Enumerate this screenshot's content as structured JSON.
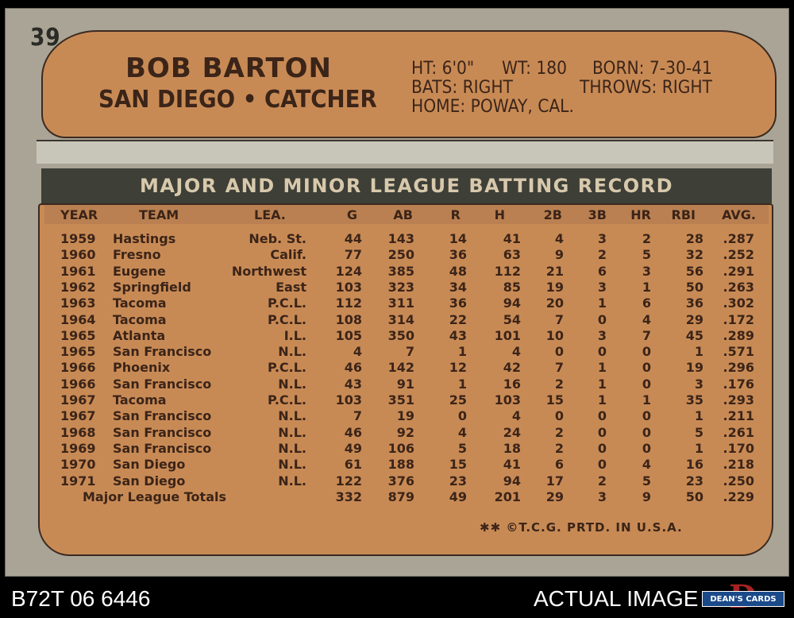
{
  "card": {
    "number": "39",
    "player_name": "BOB BARTON",
    "team": "SAN DIEGO",
    "separator": "•",
    "position": "CATCHER",
    "bio": {
      "ht": "HT: 6'0\"",
      "wt": "WT: 180",
      "born": "BORN: 7-30-41",
      "bats": "BATS: RIGHT",
      "throws": "THROWS: RIGHT",
      "home": "HOME: POWAY, CAL."
    },
    "record_title": "MAJOR AND MINOR LEAGUE BATTING RECORD",
    "columns": [
      "YEAR",
      "TEAM",
      "LEA.",
      "G",
      "AB",
      "R",
      "H",
      "2B",
      "3B",
      "HR",
      "RBI",
      "AVG."
    ],
    "rows": [
      [
        "1959",
        "Hastings",
        "Neb. St.",
        "44",
        "143",
        "14",
        "41",
        "4",
        "3",
        "2",
        "28",
        ".287"
      ],
      [
        "1960",
        "Fresno",
        "Calif.",
        "77",
        "250",
        "36",
        "63",
        "9",
        "2",
        "5",
        "32",
        ".252"
      ],
      [
        "1961",
        "Eugene",
        "Northwest",
        "124",
        "385",
        "48",
        "112",
        "21",
        "6",
        "3",
        "56",
        ".291"
      ],
      [
        "1962",
        "Springfield",
        "East",
        "103",
        "323",
        "34",
        "85",
        "19",
        "3",
        "1",
        "50",
        ".263"
      ],
      [
        "1963",
        "Tacoma",
        "P.C.L.",
        "112",
        "311",
        "36",
        "94",
        "20",
        "1",
        "6",
        "36",
        ".302"
      ],
      [
        "1964",
        "Tacoma",
        "P.C.L.",
        "108",
        "314",
        "22",
        "54",
        "7",
        "0",
        "4",
        "29",
        ".172"
      ],
      [
        "1965",
        "Atlanta",
        "I.L.",
        "105",
        "350",
        "43",
        "101",
        "10",
        "3",
        "7",
        "45",
        ".289"
      ],
      [
        "1965",
        "San Francisco",
        "N.L.",
        "4",
        "7",
        "1",
        "4",
        "0",
        "0",
        "0",
        "1",
        ".571"
      ],
      [
        "1966",
        "Phoenix",
        "P.C.L.",
        "46",
        "142",
        "12",
        "42",
        "7",
        "1",
        "0",
        "19",
        ".296"
      ],
      [
        "1966",
        "San Francisco",
        "N.L.",
        "43",
        "91",
        "1",
        "16",
        "2",
        "1",
        "0",
        "3",
        ".176"
      ],
      [
        "1967",
        "Tacoma",
        "P.C.L.",
        "103",
        "351",
        "25",
        "103",
        "15",
        "1",
        "1",
        "35",
        ".293"
      ],
      [
        "1967",
        "San Francisco",
        "N.L.",
        "7",
        "19",
        "0",
        "4",
        "0",
        "0",
        "0",
        "1",
        ".211"
      ],
      [
        "1968",
        "San Francisco",
        "N.L.",
        "46",
        "92",
        "4",
        "24",
        "2",
        "0",
        "0",
        "5",
        ".261"
      ],
      [
        "1969",
        "San Francisco",
        "N.L.",
        "49",
        "106",
        "5",
        "18",
        "2",
        "0",
        "0",
        "1",
        ".170"
      ],
      [
        "1970",
        "San Diego",
        "N.L.",
        "61",
        "188",
        "15",
        "41",
        "6",
        "0",
        "4",
        "16",
        ".218"
      ],
      [
        "1971",
        "San Diego",
        "N.L.",
        "122",
        "376",
        "23",
        "94",
        "17",
        "2",
        "5",
        "23",
        ".250"
      ]
    ],
    "totals": {
      "label": "Major League Totals",
      "values": [
        "332",
        "879",
        "49",
        "201",
        "29",
        "3",
        "9",
        "50",
        ".229"
      ]
    },
    "footer": "✱✱ ©T.C.G. PRTD. IN U.S.A."
  },
  "bottom_bar": {
    "cert_number": "B72T 06 6446",
    "actual_label": "ACTUAL IMAGE",
    "logo_text": "DEAN'S CARDS",
    "logo_letter": "D"
  },
  "colors": {
    "card_gray": "#a9a495",
    "panel_orange": "#c88a55",
    "ink_brown": "#3b2418",
    "banner_dark": "#3e3f37"
  }
}
